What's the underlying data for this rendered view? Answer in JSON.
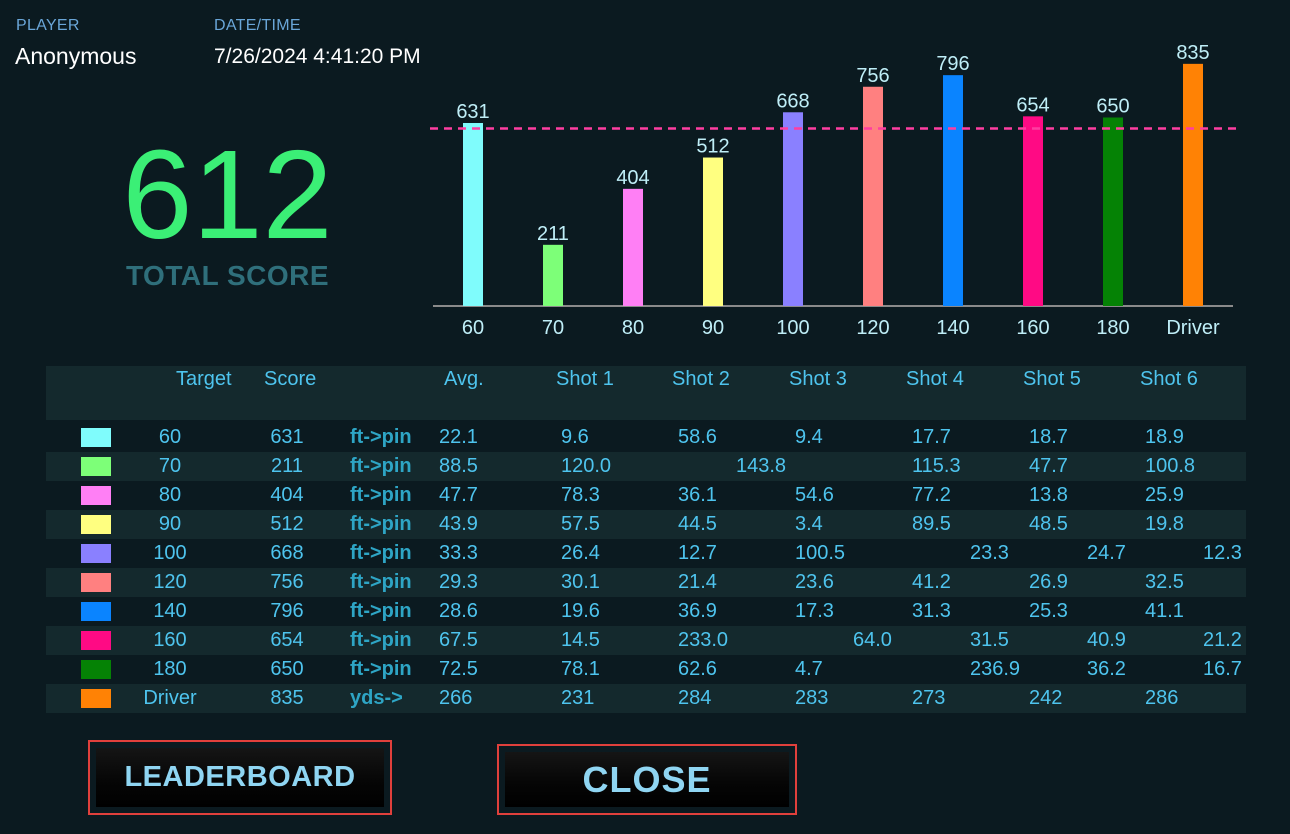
{
  "header": {
    "player_label": "PLAYER",
    "player_name": "Anonymous",
    "datetime_label": "DATE/TIME",
    "datetime_value": "7/26/2024 4:41:20 PM"
  },
  "total_score": {
    "value": "612",
    "label": "TOTAL SCORE"
  },
  "chart_data": {
    "type": "bar",
    "categories": [
      "60",
      "70",
      "80",
      "90",
      "100",
      "120",
      "140",
      "160",
      "180",
      "Driver"
    ],
    "values": [
      631,
      211,
      404,
      512,
      668,
      756,
      796,
      654,
      650,
      835
    ],
    "colors": [
      "#7ffcfc",
      "#7dff78",
      "#ff7ff5",
      "#ffff80",
      "#8a80ff",
      "#ff8080",
      "#0a84ff",
      "#ff0a84",
      "#058205",
      "#ff8205"
    ],
    "reference_line": {
      "value": 612,
      "style": "dashed",
      "color": "#ff3ea1"
    },
    "ylim": [
      0,
      900
    ],
    "data_labels": true,
    "grid": false
  },
  "table": {
    "headers": [
      "Target",
      "Score",
      "Avg.",
      "Shot 1",
      "Shot 2",
      "Shot 3",
      "Shot 4",
      "Shot 5",
      "Shot 6"
    ],
    "rows": [
      {
        "color": "#7ffcfc",
        "target": "60",
        "score": "631",
        "unit": "ft->pin",
        "avg": "22.1",
        "shots": [
          "9.6",
          "58.6",
          "9.4",
          "17.7",
          "18.7",
          "18.9"
        ]
      },
      {
        "color": "#7dff78",
        "target": "70",
        "score": "211",
        "unit": "ft->pin",
        "avg": "88.5",
        "shots": [
          "120.0",
          "143.8",
          "",
          "115.3",
          "47.7",
          "100.8"
        ]
      },
      {
        "color": "#ff7ff5",
        "target": "80",
        "score": "404",
        "unit": "ft->pin",
        "avg": "47.7",
        "shots": [
          "78.3",
          "36.1",
          "54.6",
          "77.2",
          "13.8",
          "25.9"
        ]
      },
      {
        "color": "#ffff80",
        "target": "90",
        "score": "512",
        "unit": "ft->pin",
        "avg": "43.9",
        "shots": [
          "57.5",
          "44.5",
          "3.4",
          "89.5",
          "48.5",
          "19.8"
        ]
      },
      {
        "color": "#8a80ff",
        "target": "100",
        "score": "668",
        "unit": "ft->pin",
        "avg": "33.3",
        "shots": [
          "26.4",
          "12.7",
          "100.5",
          "23.3",
          "24.7",
          "12.3"
        ]
      },
      {
        "color": "#ff8080",
        "target": "120",
        "score": "756",
        "unit": "ft->pin",
        "avg": "29.3",
        "shots": [
          "30.1",
          "21.4",
          "23.6",
          "41.2",
          "26.9",
          "32.5"
        ]
      },
      {
        "color": "#0a84ff",
        "target": "140",
        "score": "796",
        "unit": "ft->pin",
        "avg": "28.6",
        "shots": [
          "19.6",
          "36.9",
          "17.3",
          "31.3",
          "25.3",
          "41.1"
        ]
      },
      {
        "color": "#ff0a84",
        "target": "160",
        "score": "654",
        "unit": "ft->pin",
        "avg": "67.5",
        "shots": [
          "14.5",
          "233.0",
          "64.0",
          "31.5",
          "40.9",
          "21.2"
        ]
      },
      {
        "color": "#058205",
        "target": "180",
        "score": "650",
        "unit": "ft->pin",
        "avg": "72.5",
        "shots": [
          "78.1",
          "62.6",
          "4.7",
          "236.9",
          "36.2",
          "16.7"
        ]
      },
      {
        "color": "#ff8205",
        "target": "Driver",
        "score": "835",
        "unit": "yds->",
        "avg": "266",
        "shots": [
          "231",
          "284",
          "283",
          "273",
          "242",
          "286"
        ]
      }
    ]
  },
  "buttons": {
    "leaderboard": "LEADERBOARD",
    "close": "CLOSE"
  }
}
